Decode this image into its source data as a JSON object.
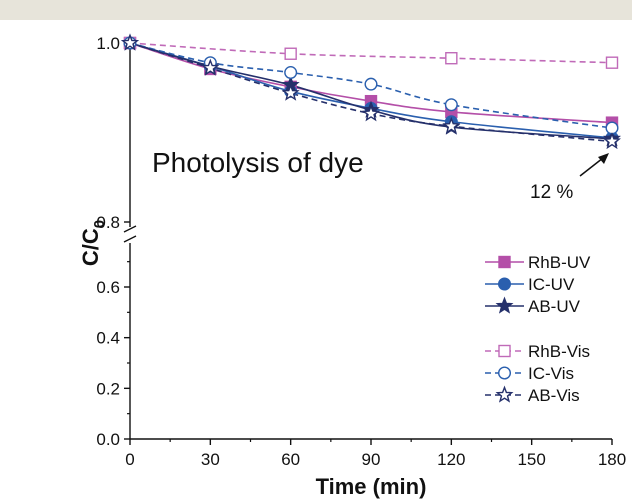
{
  "chart_data": {
    "type": "line",
    "xlabel": "Time (min)",
    "ylabel_main": "C/C",
    "ylabel_sub": "0",
    "x": [
      0,
      30,
      60,
      90,
      120,
      180
    ],
    "x_ticks": [
      "0",
      "30",
      "60",
      "90",
      "120",
      "150",
      "180"
    ],
    "xlim": [
      0,
      180
    ],
    "y_ticks_lower": [
      "0.0",
      "0.2",
      "0.4",
      "0.6",
      "0.8"
    ],
    "y_tick_upper": "1.0",
    "y_axis_broken": true,
    "ylim_lower": [
      0,
      0.8
    ],
    "ylim_upper": [
      0.8,
      1.0
    ],
    "annotations": {
      "title_text": "Photolysis of dye",
      "arrow_label": "12 %"
    },
    "legend_placement": "lower-right",
    "series": [
      {
        "name": "RhB-UV",
        "values": [
          1.0,
          0.971,
          0.951,
          0.935,
          0.923,
          0.911
        ],
        "color": "#b44fa8",
        "dashed": false,
        "marker": "square",
        "filled": true
      },
      {
        "name": "IC-UV",
        "values": [
          1.0,
          0.974,
          0.946,
          0.927,
          0.912,
          0.894
        ],
        "color": "#2a5fae",
        "dashed": false,
        "marker": "circle",
        "filled": true
      },
      {
        "name": "AB-UV",
        "values": [
          1.0,
          0.974,
          0.953,
          0.925,
          0.906,
          0.893
        ],
        "color": "#25306b",
        "dashed": false,
        "marker": "star",
        "filled": true
      },
      {
        "name": "RhB-Vis",
        "values": [
          1.0,
          null,
          0.988,
          null,
          0.983,
          0.978
        ],
        "color": "#c06ab8",
        "dashed": true,
        "marker": "square",
        "filled": false
      },
      {
        "name": "IC-Vis",
        "values": [
          1.0,
          0.978,
          0.967,
          0.954,
          0.931,
          0.905
        ],
        "color": "#2a5fae",
        "dashed": true,
        "marker": "circle",
        "filled": false
      },
      {
        "name": "AB-Vis",
        "values": [
          1.0,
          0.972,
          0.944,
          0.921,
          0.907,
          0.89
        ],
        "color": "#25306b",
        "dashed": true,
        "marker": "star",
        "filled": false
      }
    ]
  }
}
